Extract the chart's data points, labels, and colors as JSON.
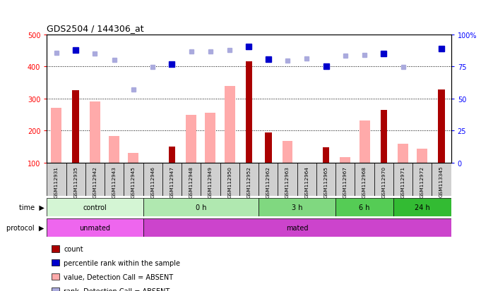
{
  "title": "GDS2504 / 144306_at",
  "samples": [
    "GSM112931",
    "GSM112935",
    "GSM112942",
    "GSM112943",
    "GSM112945",
    "GSM112946",
    "GSM112947",
    "GSM112948",
    "GSM112949",
    "GSM112950",
    "GSM112952",
    "GSM112962",
    "GSM112963",
    "GSM112964",
    "GSM112965",
    "GSM112967",
    "GSM112968",
    "GSM112970",
    "GSM112971",
    "GSM112972",
    "GSM113345"
  ],
  "count_values": [
    null,
    325,
    null,
    null,
    null,
    null,
    150,
    null,
    null,
    null,
    415,
    195,
    null,
    null,
    148,
    null,
    null,
    265,
    null,
    null,
    328
  ],
  "value_absent": [
    272,
    null,
    290,
    184,
    130,
    null,
    null,
    248,
    255,
    340,
    null,
    null,
    168,
    null,
    null,
    117,
    232,
    null,
    160,
    144,
    null
  ],
  "rank_absent": [
    443,
    null,
    441,
    420,
    328,
    399,
    null,
    447,
    447,
    450,
    null,
    null,
    418,
    425,
    null,
    434,
    436,
    null,
    398,
    null,
    null
  ],
  "rank_count": [
    null,
    451,
    null,
    null,
    null,
    null,
    406,
    null,
    null,
    null,
    461,
    422,
    null,
    null,
    401,
    null,
    null,
    441,
    null,
    null,
    455
  ],
  "time_groups": [
    {
      "label": "control",
      "start": 0,
      "end": 5,
      "color": "#d4f5d4"
    },
    {
      "label": "0 h",
      "start": 5,
      "end": 11,
      "color": "#b0e8b0"
    },
    {
      "label": "3 h",
      "start": 11,
      "end": 15,
      "color": "#80d880"
    },
    {
      "label": "6 h",
      "start": 15,
      "end": 18,
      "color": "#55cc55"
    },
    {
      "label": "24 h",
      "start": 18,
      "end": 21,
      "color": "#33bb33"
    }
  ],
  "protocol_groups": [
    {
      "label": "unmated",
      "start": 0,
      "end": 5,
      "color": "#ee66ee"
    },
    {
      "label": "mated",
      "start": 5,
      "end": 21,
      "color": "#cc44cc"
    }
  ],
  "ylim": [
    100,
    500
  ],
  "yticks_left": [
    100,
    200,
    300,
    400,
    500
  ],
  "bar_color_count": "#aa0000",
  "bar_color_absent": "#ffaaaa",
  "dot_color_rank_absent": "#aaaadd",
  "dot_color_rank_count": "#0000cc",
  "legend": [
    {
      "label": "count",
      "color": "#aa0000"
    },
    {
      "label": "percentile rank within the sample",
      "color": "#0000cc"
    },
    {
      "label": "value, Detection Call = ABSENT",
      "color": "#ffaaaa"
    },
    {
      "label": "rank, Detection Call = ABSENT",
      "color": "#aaaadd"
    }
  ],
  "bg_gray": "#d0d0d0"
}
